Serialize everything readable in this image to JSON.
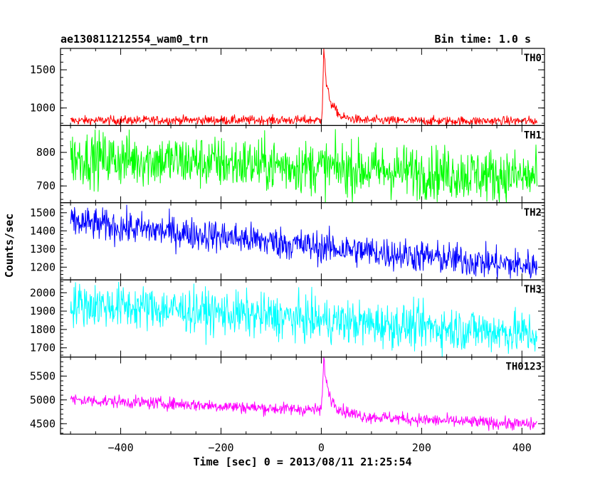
{
  "header": {
    "left_title": "ae130811212554_wam0_trn",
    "right_title": "Bin time: 1.0 s"
  },
  "chart_data": {
    "type": "line",
    "title": "ae130811212554_wam0_trn",
    "subtitle": "Bin time: 1.0 s",
    "xlabel": "Time [sec] 0 = 2013/08/11 21:25:54",
    "ylabel": "Counts/sec",
    "xlim": [
      -520,
      445
    ],
    "x_ticks": [
      -400,
      -200,
      0,
      200,
      400
    ],
    "x_tick_labels": [
      "−400",
      "−200",
      "0",
      "200",
      "400"
    ],
    "grid": false,
    "bin_time_s": 1.0,
    "panels": [
      {
        "name": "TH0",
        "color": "#ff0000",
        "ylim": [
          770,
          1780
        ],
        "y_ticks": [
          1000,
          1500
        ],
        "y_tick_labels": [
          "1000",
          "1500"
        ],
        "profile": {
          "x": [
            -500,
            -300,
            -100,
            0,
            2,
            5,
            10,
            20,
            40,
            80,
            200,
            430
          ],
          "y": [
            835,
            840,
            840,
            840,
            1000,
            1780,
            1300,
            1050,
            880,
            840,
            830,
            830
          ]
        },
        "noise": 30
      },
      {
        "name": "TH1",
        "color": "#00ff00",
        "ylim": [
          650,
          880
        ],
        "y_ticks": [
          700,
          800
        ],
        "y_tick_labels": [
          "700",
          "800"
        ],
        "profile": {
          "x": [
            -500,
            -300,
            -100,
            0,
            100,
            300,
            430
          ],
          "y": [
            785,
            775,
            762,
            755,
            748,
            735,
            725
          ]
        },
        "noise": 40
      },
      {
        "name": "TH2",
        "color": "#0000ff",
        "ylim": [
          1130,
          1555
        ],
        "y_ticks": [
          1200,
          1300,
          1400,
          1500
        ],
        "y_tick_labels": [
          "1200",
          "1300",
          "1400",
          "1500"
        ],
        "profile": {
          "x": [
            -500,
            -400,
            -200,
            0,
            200,
            350,
            430
          ],
          "y": [
            1450,
            1420,
            1370,
            1310,
            1260,
            1220,
            1205
          ]
        },
        "noise": 45
      },
      {
        "name": "TH3",
        "color": "#00ffff",
        "ylim": [
          1650,
          2070
        ],
        "y_ticks": [
          1700,
          1800,
          1900,
          2000
        ],
        "y_tick_labels": [
          "1700",
          "1800",
          "1900",
          "2000"
        ],
        "profile": {
          "x": [
            -500,
            -300,
            -100,
            100,
            300,
            430
          ],
          "y": [
            1940,
            1910,
            1870,
            1830,
            1800,
            1775
          ]
        },
        "noise": 60
      },
      {
        "name": "TH0123",
        "color": "#ff00ff",
        "ylim": [
          4280,
          5900
        ],
        "y_ticks": [
          4500,
          5000,
          5500
        ],
        "y_tick_labels": [
          "4500",
          "5000",
          "5500"
        ],
        "profile": {
          "x": [
            -500,
            -300,
            -100,
            0,
            2,
            5,
            10,
            20,
            40,
            80,
            200,
            430
          ],
          "y": [
            5000,
            4920,
            4820,
            4790,
            5100,
            5900,
            5350,
            5000,
            4780,
            4660,
            4580,
            4480
          ]
        },
        "noise": 65
      }
    ]
  }
}
